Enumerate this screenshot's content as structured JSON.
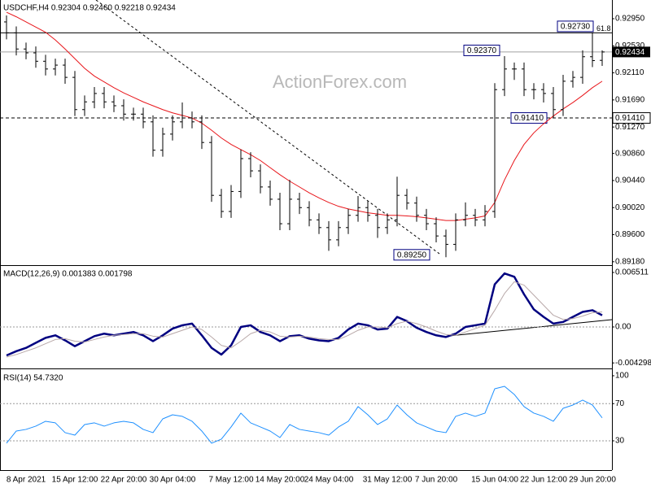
{
  "chart_data": [
    {
      "type": "ohlc",
      "title": "USDCHF,H4  0.92304 0.92460 0.92218 0.92434",
      "watermark": "ActionForex.com",
      "color": "#000000",
      "categories": [
        null,
        null,
        "8 Apr 2021",
        null,
        null,
        null,
        null,
        "15 Apr 12:00",
        null,
        null,
        null,
        null,
        "22 Apr 20:00",
        null,
        null,
        null,
        null,
        "30 Apr 04:00",
        null,
        null,
        null,
        null,
        null,
        "7 May 12:00",
        null,
        null,
        null,
        null,
        "14 May 20:00",
        null,
        null,
        null,
        null,
        "24 May 04:00",
        null,
        null,
        null,
        null,
        null,
        "31 May 12:00",
        null,
        null,
        null,
        null,
        "7 Jun 20:00",
        null,
        null,
        null,
        null,
        null,
        "15 Jun 04:00",
        null,
        null,
        null,
        null,
        "22 Jun 12:00",
        null,
        null,
        null,
        null,
        "29 Jun 20:00",
        null
      ],
      "open": [
        0.929,
        0.9273,
        0.9248,
        0.9242,
        0.9229,
        0.9217,
        0.9223,
        0.9204,
        0.9154,
        0.9166,
        0.9179,
        0.9166,
        0.916,
        0.9147,
        0.9147,
        0.9135,
        0.9091,
        0.9116,
        0.9135,
        0.9141,
        0.9135,
        0.9103,
        0.9021,
        0.8996,
        0.9027,
        0.9078,
        0.9059,
        0.9034,
        0.9015,
        0.8977,
        0.9015,
        0.9002,
        0.8983,
        0.8971,
        0.8952,
        0.8971,
        0.899,
        0.9002,
        0.899,
        0.8971,
        0.8983,
        0.9021,
        0.9009,
        0.899,
        0.8977,
        0.8958,
        0.8945,
        0.8983,
        0.899,
        0.8983,
        0.8996,
        0.9185,
        0.9217,
        0.9217,
        0.9185,
        0.9185,
        0.9179,
        0.9154,
        0.9198,
        0.9204,
        0.9236,
        0.92304
      ],
      "high": [
        0.93,
        0.9283,
        0.9258,
        0.9252,
        0.9239,
        0.9233,
        0.9233,
        0.9214,
        0.9176,
        0.9189,
        0.9189,
        0.9176,
        0.917,
        0.9157,
        0.9157,
        0.9145,
        0.9126,
        0.9145,
        0.9165,
        0.9151,
        0.9145,
        0.9113,
        0.9031,
        0.9037,
        0.9092,
        0.9088,
        0.9069,
        0.9044,
        0.9025,
        0.9045,
        0.9025,
        0.9012,
        0.8993,
        0.8981,
        0.8981,
        0.9,
        0.902,
        0.9012,
        0.9,
        0.8993,
        0.905,
        0.9031,
        0.9019,
        0.9,
        0.8987,
        0.8968,
        0.8993,
        0.901,
        0.9,
        0.9006,
        0.9195,
        0.9237,
        0.9227,
        0.9227,
        0.9195,
        0.9195,
        0.9189,
        0.9208,
        0.9214,
        0.9246,
        0.9273,
        0.9246
      ],
      "low": [
        0.9263,
        0.9238,
        0.9232,
        0.9219,
        0.9207,
        0.9207,
        0.9194,
        0.9144,
        0.9144,
        0.9156,
        0.9156,
        0.915,
        0.9137,
        0.9137,
        0.9125,
        0.9081,
        0.9081,
        0.9106,
        0.9125,
        0.9125,
        0.9093,
        0.9011,
        0.8986,
        0.8986,
        0.9017,
        0.9049,
        0.9024,
        0.9005,
        0.8967,
        0.8967,
        0.8992,
        0.8973,
        0.8961,
        0.8935,
        0.8942,
        0.8961,
        0.898,
        0.898,
        0.8955,
        0.8961,
        0.8973,
        0.8999,
        0.898,
        0.8967,
        0.8948,
        0.8925,
        0.8935,
        0.8973,
        0.8973,
        0.8973,
        0.8986,
        0.9175,
        0.92,
        0.9175,
        0.917,
        0.9165,
        0.9141,
        0.9144,
        0.9188,
        0.9194,
        0.922,
        0.92218
      ],
      "close": [
        0.9273,
        0.9248,
        0.9242,
        0.9229,
        0.9217,
        0.9223,
        0.9204,
        0.9154,
        0.9166,
        0.9179,
        0.9166,
        0.916,
        0.9147,
        0.9147,
        0.9135,
        0.9091,
        0.9116,
        0.9135,
        0.9141,
        0.9135,
        0.9103,
        0.9021,
        0.8996,
        0.9027,
        0.9078,
        0.9059,
        0.9034,
        0.9015,
        0.8977,
        0.9015,
        0.9002,
        0.8983,
        0.8971,
        0.8952,
        0.8971,
        0.899,
        0.9002,
        0.899,
        0.8971,
        0.8983,
        0.9021,
        0.9009,
        0.899,
        0.8977,
        0.8958,
        0.8945,
        0.8983,
        0.899,
        0.8983,
        0.8996,
        0.9185,
        0.9217,
        0.9217,
        0.9185,
        0.9185,
        0.9179,
        0.9154,
        0.9198,
        0.9204,
        0.9236,
        0.923,
        0.92434
      ],
      "overlays": [
        {
          "color": "#e8161b",
          "values": [
            0.9305,
            0.9298,
            0.929,
            0.9282,
            0.9274,
            0.9262,
            0.9248,
            0.9233,
            0.9218,
            0.9206,
            0.9197,
            0.9188,
            0.918,
            0.9173,
            0.9166,
            0.916,
            0.9154,
            0.9149,
            0.9145,
            0.9141,
            0.9133,
            0.9122,
            0.911,
            0.91,
            0.9092,
            0.9084,
            0.9075,
            0.9064,
            0.9053,
            0.9043,
            0.9034,
            0.9025,
            0.9017,
            0.901,
            0.9004,
            0.9,
            0.8997,
            0.8994,
            0.8992,
            0.899,
            0.899,
            0.8989,
            0.8988,
            0.8986,
            0.8984,
            0.8982,
            0.8982,
            0.8984,
            0.8986,
            0.8989,
            0.901,
            0.9045,
            0.9075,
            0.91,
            0.9118,
            0.9132,
            0.9144,
            0.9155,
            0.9165,
            0.9176,
            0.9188,
            0.9198
          ]
        }
      ],
      "ylim": [
        0.8914,
        0.9324
      ],
      "yticks": [
        {
          "value": 0.9295,
          "label": "0.92950"
        },
        {
          "value": 0.9253,
          "label": "0.92530"
        },
        {
          "value": 0.9211,
          "label": "0.92110"
        },
        {
          "value": 0.9169,
          "label": "0.91690"
        },
        {
          "value": 0.9127,
          "label": "0.91270"
        },
        {
          "value": 0.9086,
          "label": "0.90860"
        },
        {
          "value": 0.9044,
          "label": "0.90440"
        },
        {
          "value": 0.9002,
          "label": "0.90020"
        },
        {
          "value": 0.896,
          "label": "0.89600"
        },
        {
          "value": 0.8918,
          "label": "0.89180"
        }
      ],
      "current": {
        "value": 0.92434,
        "label": "0.92434"
      },
      "annotations": [
        {
          "value": 0.9273,
          "label": "0.92730",
          "line": "solid",
          "note": "61.8"
        },
        {
          "value": 0.9237,
          "label": "0.92370"
        },
        {
          "value": 0.9141,
          "label": "0.91410",
          "line": "dashed",
          "axis_label": true
        },
        {
          "value": 0.8925,
          "label": "0.89250"
        }
      ]
    },
    {
      "type": "line",
      "title": "MACD(12,26,9) 0.001383 0.001798",
      "series": [
        {
          "color": "#000080",
          "width": 2.5,
          "values": [
            -0.0034,
            -0.0029,
            -0.0025,
            -0.0019,
            -0.0013,
            -0.001,
            -0.0016,
            -0.0023,
            -0.0017,
            -0.0011,
            -0.0008,
            -0.001,
            -0.0008,
            -0.0006,
            -0.001,
            -0.0017,
            -0.001,
            -0.0002,
            0.0002,
            0.0004,
            -0.001,
            -0.0025,
            -0.0033,
            -0.0022,
            0.0,
            0.0002,
            -0.0006,
            -0.001,
            -0.0017,
            -0.0011,
            -0.001,
            -0.0014,
            -0.0016,
            -0.0017,
            -0.0013,
            -0.0003,
            0.0004,
            0.0002,
            -0.0003,
            -0.0002,
            0.0012,
            0.0007,
            -0.0001,
            -0.0006,
            -0.001,
            -0.0012,
            -0.0008,
            0.0,
            0.0002,
            0.0004,
            0.0051,
            0.0064,
            0.006,
            0.0039,
            0.0021,
            0.0012,
            0.0004,
            0.0006,
            0.0012,
            0.0018,
            0.002,
            0.0014
          ]
        },
        {
          "color": "#b8a8a8",
          "width": 1,
          "values": [
            -0.0036,
            -0.0033,
            -0.0029,
            -0.0025,
            -0.002,
            -0.0015,
            -0.0014,
            -0.0017,
            -0.0018,
            -0.0015,
            -0.0012,
            -0.001,
            -0.0009,
            -0.0008,
            -0.0008,
            -0.0011,
            -0.0012,
            -0.0008,
            -0.0004,
            0.0,
            -0.0003,
            -0.0012,
            -0.0022,
            -0.0025,
            -0.0017,
            -0.0008,
            -0.0004,
            -0.0006,
            -0.0011,
            -0.0012,
            -0.0011,
            -0.0012,
            -0.0014,
            -0.0015,
            -0.0015,
            -0.001,
            -0.0004,
            0.0,
            0.0,
            -0.0001,
            0.0004,
            0.0007,
            0.0004,
            0.0,
            -0.0005,
            -0.0009,
            -0.001,
            -0.0006,
            -0.0002,
            0.0002,
            0.002,
            0.004,
            0.0054,
            0.005,
            0.0038,
            0.0026,
            0.0014,
            0.0009,
            0.001,
            0.0013,
            0.0017,
            0.0018
          ]
        }
      ],
      "ylim": [
        -0.00486,
        0.00729
      ],
      "yticks": [
        {
          "value": 0.006511,
          "label": "0.006511"
        },
        {
          "value": 0,
          "label": "0.00"
        },
        {
          "value": -0.004298,
          "label": "-0.004298"
        }
      ],
      "levels": [
        0
      ]
    },
    {
      "type": "line",
      "title": "RSI(14) 54.7320",
      "series": [
        {
          "color": "#1e90ff",
          "width": 1,
          "values": [
            27.4,
            40.5,
            42.3,
            45.8,
            51.0,
            49.3,
            38.8,
            36.1,
            47.5,
            49.3,
            45.8,
            49.3,
            51.0,
            49.3,
            42.3,
            38.8,
            53.6,
            58.0,
            56.3,
            51.0,
            40.5,
            27.4,
            31.8,
            44.9,
            59.8,
            49.3,
            44.9,
            40.5,
            33.5,
            47.5,
            42.3,
            40.5,
            38.8,
            36.1,
            44.9,
            51.0,
            66.8,
            58.0,
            47.5,
            53.6,
            68.5,
            58.0,
            49.3,
            44.9,
            40.5,
            38.8,
            56.3,
            59.8,
            56.3,
            59.8,
            86.0,
            88.6,
            79.9,
            66.8,
            59.8,
            56.3,
            51.0,
            65.0,
            68.5,
            73.8,
            68.5,
            54.7
          ]
        }
      ],
      "ylim": [
        -1.5,
        106.1
      ],
      "yticks": [
        100,
        70,
        30
      ],
      "levels": [
        70,
        30
      ]
    }
  ]
}
